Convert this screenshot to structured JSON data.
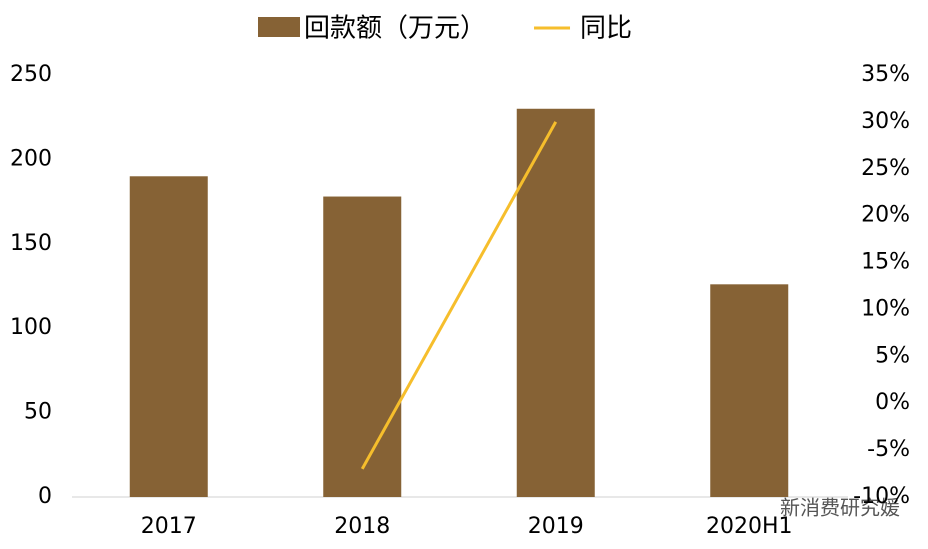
{
  "chart_data": {
    "type": "bar",
    "categories": [
      "2017",
      "2018",
      "2019",
      "2020H1"
    ],
    "series": [
      {
        "name": "回款额（万元）",
        "type": "bar",
        "color": "#866235",
        "values": [
          190,
          178,
          230,
          126
        ]
      },
      {
        "name": "同比",
        "type": "line",
        "axis": "y2",
        "color": "#f6be2c",
        "values": [
          null,
          -7,
          30,
          null
        ]
      }
    ],
    "ylim": [
      0,
      250
    ],
    "yticks": [
      0,
      50,
      100,
      150,
      200,
      250
    ],
    "y2lim": [
      -10,
      35
    ],
    "y2ticks": [
      {
        "value": -10,
        "label": "-10%"
      },
      {
        "value": -5,
        "label": "-5%"
      },
      {
        "value": 0,
        "label": "0%"
      },
      {
        "value": 5,
        "label": "5%"
      },
      {
        "value": 10,
        "label": "10%"
      },
      {
        "value": 15,
        "label": "15%"
      },
      {
        "value": 20,
        "label": "20%"
      },
      {
        "value": 25,
        "label": "25%"
      },
      {
        "value": 30,
        "label": "30%"
      },
      {
        "value": 35,
        "label": "35%"
      }
    ],
    "legend": "top",
    "watermark": "新消费研究媛"
  }
}
